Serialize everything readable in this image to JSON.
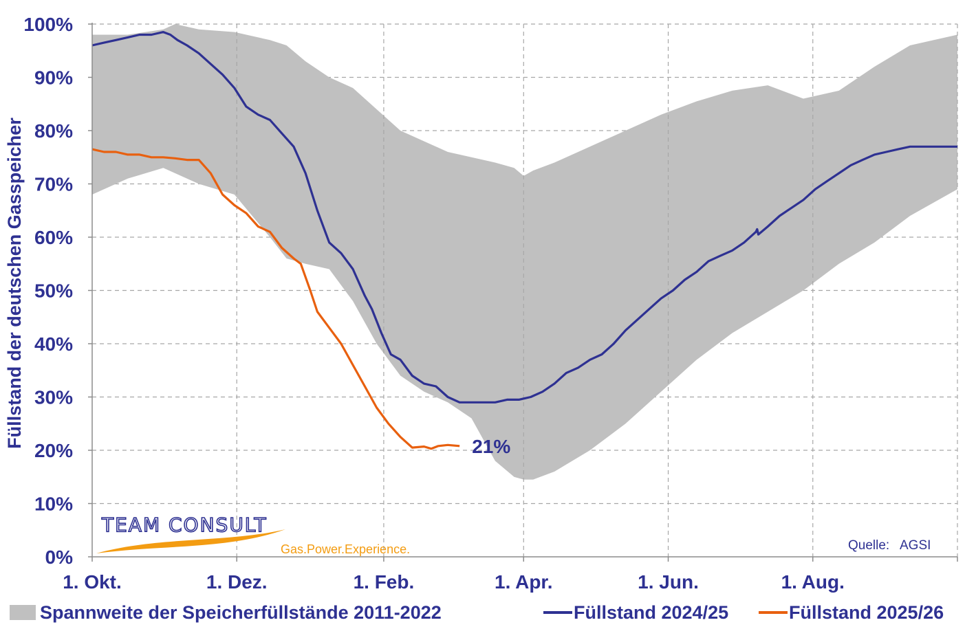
{
  "chart_data": {
    "type": "line",
    "title": "",
    "ylabel": "Füllstand der deutschen Gasspeicher",
    "xlabel": "",
    "ylim": [
      0,
      100
    ],
    "y_ticks": [
      "0%",
      "10%",
      "20%",
      "30%",
      "40%",
      "50%",
      "60%",
      "70%",
      "80%",
      "90%",
      "100%"
    ],
    "x_ticks": [
      "1. Okt.",
      "1. Dez.",
      "1. Feb.",
      "1. Apr.",
      "1. Jun.",
      "1. Aug."
    ],
    "x_tick_days": [
      0,
      61,
      123,
      182,
      243,
      304
    ],
    "x_range_days": [
      0,
      365
    ],
    "grid": "dashed",
    "legend_position": "bottom",
    "range_band": {
      "name": "Spannweite der Speicherfüllstände 2011-2022",
      "color": "#c0c0c0",
      "x": [
        0,
        15,
        30,
        35,
        45,
        60,
        75,
        82,
        90,
        100,
        110,
        120,
        130,
        140,
        150,
        160,
        170,
        178,
        182,
        186,
        195,
        210,
        225,
        240,
        255,
        270,
        285,
        300,
        315,
        330,
        345,
        365
      ],
      "upper": [
        98,
        98,
        99,
        100,
        99,
        98.5,
        97,
        96,
        93,
        90,
        88,
        84,
        80,
        78,
        76,
        75,
        74,
        73,
        71.5,
        72.5,
        74,
        77,
        80,
        83,
        85.5,
        87.5,
        88.5,
        86,
        87.5,
        92,
        96,
        98
      ],
      "lower": [
        68,
        71,
        73,
        72,
        70,
        68,
        60,
        56,
        55,
        54,
        48,
        40,
        34,
        31,
        29,
        26,
        18,
        15,
        14.5,
        14.5,
        16,
        20,
        25,
        31,
        37,
        42,
        46,
        50,
        55,
        59,
        64,
        69
      ]
    },
    "series": [
      {
        "name": "Füllstand 2024/25",
        "color": "#2e3192",
        "x": [
          0,
          5,
          10,
          15,
          20,
          25,
          30,
          33,
          36,
          40,
          45,
          50,
          55,
          60,
          65,
          70,
          75,
          80,
          85,
          90,
          95,
          100,
          105,
          110,
          115,
          118,
          122,
          126,
          130,
          135,
          140,
          145,
          150,
          155,
          160,
          165,
          170,
          175,
          180,
          185,
          190,
          195,
          200,
          205,
          210,
          215,
          220,
          225,
          230,
          235,
          240,
          245,
          250,
          255,
          260,
          265,
          270,
          275,
          280,
          280.5,
          281,
          285,
          290,
          295,
          300,
          305,
          310,
          315,
          320,
          325,
          330,
          335,
          340,
          345,
          350,
          355,
          360,
          365
        ],
        "values": [
          96,
          96.5,
          97,
          97.5,
          98,
          98,
          98.5,
          98,
          97,
          96,
          94.5,
          92.5,
          90.5,
          88,
          84.5,
          83,
          82,
          79.5,
          77,
          72,
          65,
          59,
          57,
          54,
          49,
          46.5,
          42,
          38,
          37,
          34,
          32.5,
          32,
          30,
          29,
          29,
          29,
          29,
          29.5,
          29.5,
          30,
          31,
          32.5,
          34.5,
          35.5,
          37,
          38,
          40,
          42.5,
          44.5,
          46.5,
          48.5,
          50,
          52,
          53.5,
          55.5,
          56.5,
          57.5,
          59,
          61,
          61.5,
          60.5,
          62,
          64,
          65.5,
          67,
          69,
          70.5,
          72,
          73.5,
          74.5,
          75.5,
          76,
          76.5,
          77,
          77,
          77,
          77,
          77
        ]
      },
      {
        "name": "Füllstand 2025/26",
        "color": "#e8600f",
        "x": [
          0,
          5,
          10,
          15,
          20,
          25,
          30,
          35,
          40,
          45,
          50,
          55,
          60,
          65,
          70,
          75,
          80,
          85,
          88,
          92,
          95,
          100,
          105,
          110,
          115,
          120,
          125,
          130,
          135,
          140,
          143,
          146,
          150,
          155
        ],
        "values": [
          76.5,
          76,
          76,
          75.5,
          75.5,
          75,
          75,
          74.8,
          74.5,
          74.5,
          72,
          68,
          66,
          64.5,
          62,
          61,
          58,
          56,
          55,
          50,
          46,
          43,
          40,
          36,
          32,
          28,
          25,
          22.5,
          20.5,
          20.7,
          20.3,
          20.8,
          21,
          20.8
        ]
      }
    ],
    "annotation": "21%"
  },
  "source_label": "Quelle:",
  "source_name": "AGSI",
  "logo": {
    "name": "TEAM CONSULT",
    "tagline": "Gas.Power.Experience."
  }
}
